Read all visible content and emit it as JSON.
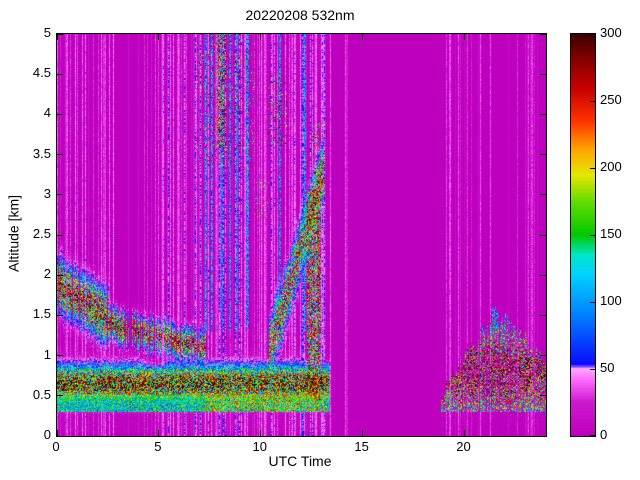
{
  "chart_data": {
    "type": "heatmap",
    "title": "20220208 532nm",
    "xlabel": "UTC Time",
    "ylabel": "Altitude [km]",
    "x_range": [
      0,
      24
    ],
    "y_range": [
      0,
      5
    ],
    "background_color": "#FFFFFF",
    "axis_color": "#000000",
    "x_ticks": [
      {
        "v": 0,
        "label": "0"
      },
      {
        "v": 5,
        "label": "5"
      },
      {
        "v": 10,
        "label": "10"
      },
      {
        "v": 15,
        "label": "15"
      },
      {
        "v": 20,
        "label": "20"
      }
    ],
    "y_ticks": [
      {
        "v": 0,
        "label": "0"
      },
      {
        "v": 0.5,
        "label": "0.5"
      },
      {
        "v": 1,
        "label": "1"
      },
      {
        "v": 1.5,
        "label": "1.5"
      },
      {
        "v": 2,
        "label": "2"
      },
      {
        "v": 2.5,
        "label": "2.5"
      },
      {
        "v": 3,
        "label": "3"
      },
      {
        "v": 3.5,
        "label": "3.5"
      },
      {
        "v": 4,
        "label": "4"
      },
      {
        "v": 4.5,
        "label": "4.5"
      },
      {
        "v": 5,
        "label": "5"
      }
    ],
    "colorbar": {
      "range": [
        0,
        300
      ],
      "ticks": [
        {
          "v": 0,
          "label": "0"
        },
        {
          "v": 50,
          "label": "50"
        },
        {
          "v": 100,
          "label": "100"
        },
        {
          "v": 150,
          "label": "150"
        },
        {
          "v": 200,
          "label": "200"
        },
        {
          "v": 250,
          "label": "250"
        },
        {
          "v": 300,
          "label": "300"
        }
      ]
    },
    "colormap": [
      {
        "v": 0,
        "c": "#BE00BE"
      },
      {
        "v": 25,
        "c": "#CD1ACD"
      },
      {
        "v": 42,
        "c": "#FF6EFF"
      },
      {
        "v": 50,
        "c": "#FFA8FF"
      },
      {
        "v": 53,
        "c": "#0A0AFF"
      },
      {
        "v": 90,
        "c": "#0080FF"
      },
      {
        "v": 120,
        "c": "#00D2FF"
      },
      {
        "v": 135,
        "c": "#00E6C8"
      },
      {
        "v": 150,
        "c": "#00C800"
      },
      {
        "v": 175,
        "c": "#64DC00"
      },
      {
        "v": 195,
        "c": "#E6E600"
      },
      {
        "v": 215,
        "c": "#FFA000"
      },
      {
        "v": 235,
        "c": "#FF3200"
      },
      {
        "v": 260,
        "c": "#C80000"
      },
      {
        "v": 285,
        "c": "#780000"
      },
      {
        "v": 300,
        "c": "#3C0000"
      }
    ],
    "features": [
      {
        "type": "pink_streaks",
        "t": [
          0,
          13.45
        ],
        "density": 0.28,
        "intensity": 34
      },
      {
        "type": "pink_streaks",
        "t": [
          5.2,
          13.45
        ],
        "density": 0.45,
        "intensity": 42
      },
      {
        "type": "pink_streaks",
        "t": [
          14.15,
          14.3
        ],
        "density": 1,
        "intensity": 30
      },
      {
        "type": "pink_streaks",
        "t": [
          18.8,
          23.9
        ],
        "density": 0.3,
        "intensity": 28
      },
      {
        "type": "blue_streaks",
        "columns": [
          7.3,
          7.6,
          8.1,
          8.5,
          8.85,
          9.35,
          10.95,
          12.15
        ],
        "alt": [
          1.3,
          5
        ],
        "max": 110,
        "halfwidth": 0.05
      },
      {
        "type": "surface_layer",
        "t": [
          0,
          13.4
        ],
        "base_alt": 0.27,
        "core_alt": 0.65,
        "core_sd": 0.22,
        "top_alt": 0.98,
        "max": 300,
        "cyan_band": [
          0.3,
          0.52
        ],
        "cyan_max": 150
      },
      {
        "type": "speckle_field",
        "t": [
          7.2,
          13.25
        ],
        "alt": [
          0.3,
          0.52
        ],
        "density": 0.85,
        "max": 230
      },
      {
        "type": "elevated_layer",
        "t": [
          0,
          2.6
        ],
        "center_start": 1.9,
        "center_end": 1.45,
        "sd": 0.3,
        "presence": 0.9,
        "max": 300
      },
      {
        "type": "elevated_layer",
        "t": [
          2.2,
          7.3
        ],
        "center_start": 1.4,
        "center_end": 1.1,
        "sd": 0.18,
        "presence": 0.75,
        "max": 290
      },
      {
        "type": "rising_plume",
        "t": [
          10.4,
          13.1
        ],
        "alt_start": 1.0,
        "alt_end": 3.3,
        "sd": 0.33,
        "max": 285
      },
      {
        "type": "column",
        "t": [
          12.25,
          12.95
        ],
        "alt": [
          0.45,
          3.05
        ],
        "density": 0.7,
        "max": 265
      },
      {
        "type": "speckle_field",
        "t": [
          6.8,
          9.7
        ],
        "alt": [
          3.35,
          5.0
        ],
        "density": 0.07,
        "max": 300
      },
      {
        "type": "speckle_field",
        "t": [
          7.85,
          8.3
        ],
        "alt": [
          3.6,
          5.0
        ],
        "density": 0.45,
        "max": 300
      },
      {
        "type": "speckle_field",
        "t": [
          10.35,
          11.3
        ],
        "alt": [
          3.6,
          4.5
        ],
        "density": 0.12,
        "max": 280
      },
      {
        "type": "speckle_field",
        "t": [
          12.5,
          13.15
        ],
        "alt": [
          3.0,
          3.9
        ],
        "density": 0.15,
        "max": 260
      },
      {
        "type": "speckle_field",
        "t": [
          9.7,
          10.4
        ],
        "alt": [
          2.7,
          3.2
        ],
        "density": 0.1,
        "max": 250
      },
      {
        "type": "evening_layer",
        "t": [
          18.85,
          24
        ],
        "base": 0.3,
        "top_start": 0.45,
        "top_peak": 1.55,
        "t_peak": 21.5,
        "decline": 0.25,
        "density": 0.55,
        "max": 300
      }
    ]
  }
}
